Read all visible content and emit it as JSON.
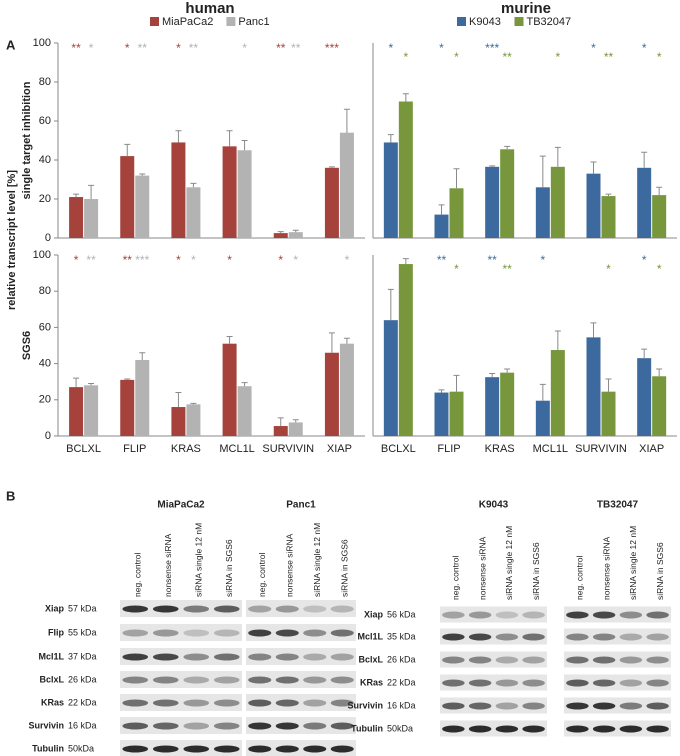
{
  "figure": {
    "panel_labels": [
      "A",
      "B"
    ],
    "ylabel": "relative transcript level [%]"
  },
  "chart_data": [
    {
      "type": "bar",
      "title": "human",
      "ylabel": "single target inhibition",
      "ylim": [
        0,
        100
      ],
      "yticks": [
        0,
        20,
        40,
        60,
        80,
        100
      ],
      "series": [
        {
          "name": "MiaPaCa2",
          "color": "#a5423b",
          "values": [
            21,
            42,
            49,
            47,
            2.5,
            36
          ],
          "errors": [
            1.5,
            6,
            6,
            8,
            0.8,
            0.5
          ],
          "annotations": [
            "**",
            "*",
            "*",
            null,
            "**",
            "***"
          ]
        },
        {
          "name": "Panc1",
          "color": "#b3b3b3",
          "values": [
            20,
            32,
            26,
            45,
            3,
            54
          ],
          "errors": [
            7,
            0.8,
            2,
            5,
            1,
            12
          ],
          "annotations": [
            "*",
            "**",
            "**",
            "*",
            "**",
            null
          ]
        }
      ]
    },
    {
      "type": "bar",
      "title": "murine",
      "ylim": [
        0,
        100
      ],
      "series": [
        {
          "name": "K9043",
          "color": "#3d6a9e",
          "values": [
            49,
            12,
            36.5,
            26,
            33,
            36
          ],
          "errors": [
            4,
            5,
            0.5,
            16,
            6,
            8
          ],
          "annotations": [
            "*",
            "*",
            "***",
            null,
            "*",
            "*"
          ]
        },
        {
          "name": "TB32047",
          "color": "#78973d",
          "values": [
            70,
            25.5,
            45.5,
            36.5,
            21.5,
            22
          ],
          "errors": [
            4,
            10,
            1.5,
            10,
            1,
            4
          ],
          "annotations": [
            "*",
            "*",
            "**",
            "*",
            "**",
            "*"
          ]
        }
      ]
    },
    {
      "type": "bar",
      "ylabel": "SGS6",
      "ylim": [
        0,
        100
      ],
      "yticks": [
        0,
        20,
        40,
        60,
        80,
        100
      ],
      "categories": [
        "BCLXL",
        "FLIP",
        "KRAS",
        "MCL1L",
        "SURVIVIN",
        "XIAP"
      ],
      "series": [
        {
          "color": "#a5423b",
          "values": [
            27,
            31,
            16,
            51,
            5.5,
            46
          ],
          "errors": [
            5,
            0.5,
            8,
            4,
            4.5,
            11
          ],
          "annotations": [
            "*",
            "**",
            "*",
            "*",
            "*",
            null
          ]
        },
        {
          "color": "#b3b3b3",
          "values": [
            28,
            42,
            17.5,
            27.5,
            7.5,
            51
          ],
          "errors": [
            1,
            4,
            0.5,
            2,
            1.5,
            3
          ],
          "annotations": [
            "**",
            "***",
            "*",
            null,
            "*",
            "*"
          ]
        }
      ]
    },
    {
      "type": "bar",
      "ylim": [
        0,
        100
      ],
      "categories": [
        "BCLXL",
        "FLIP",
        "KRAS",
        "MCL1L",
        "SURVIVIN",
        "XIAP"
      ],
      "series": [
        {
          "color": "#3d6a9e",
          "values": [
            64,
            24,
            32.5,
            19.5,
            54.5,
            43
          ],
          "errors": [
            17,
            1.5,
            2,
            9,
            8,
            5
          ],
          "annotations": [
            null,
            "**",
            "**",
            "*",
            null,
            "*"
          ]
        },
        {
          "color": "#78973d",
          "values": [
            95,
            24.5,
            35,
            47.5,
            24.5,
            33
          ],
          "errors": [
            3,
            9,
            2,
            10.5,
            7,
            4
          ],
          "annotations": [
            null,
            "*",
            "**",
            null,
            "*",
            "*"
          ]
        }
      ]
    }
  ],
  "blots": {
    "lanes": [
      "neg. control",
      "nonsense siRNA",
      "siRNA single 12 nM",
      "siRNA in SGS6"
    ],
    "groups": [
      {
        "cell_lines": [
          "MiaPaCa2",
          "Panc1"
        ],
        "proteins": [
          {
            "name": "Xiap",
            "size": "57 kDa"
          },
          {
            "name": "Flip",
            "size": "55 kDa"
          },
          {
            "name": "Mcl1L",
            "size": "37 kDa"
          },
          {
            "name": "BclxL",
            "size": "26 kDa"
          },
          {
            "name": "KRas",
            "size": "22 kDa"
          },
          {
            "name": "Survivin",
            "size": "16 kDa"
          },
          {
            "name": "Tubulin",
            "size": "50kDa"
          }
        ]
      },
      {
        "cell_lines": [
          "K9043",
          "TB32047"
        ],
        "proteins": [
          {
            "name": "Xiap",
            "size": "56 kDa"
          },
          {
            "name": "Mcl1L",
            "size": "35 kDa"
          },
          {
            "name": "BclxL",
            "size": "26 kDa"
          },
          {
            "name": "KRas",
            "size": "22 kDa"
          },
          {
            "name": "Survivin",
            "size": "16 kDa"
          },
          {
            "name": "Tubulin",
            "size": "50kDa"
          }
        ]
      }
    ]
  }
}
